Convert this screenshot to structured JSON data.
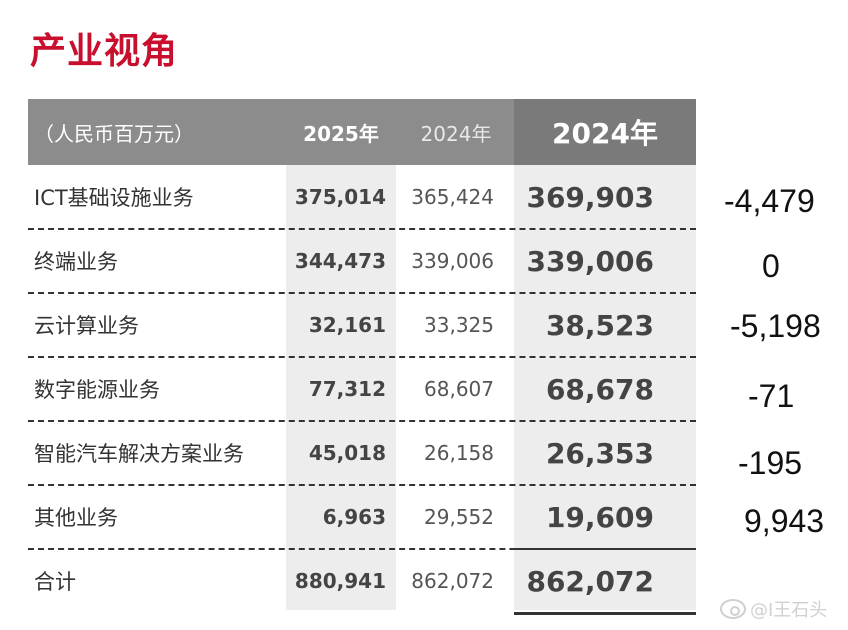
{
  "title": "产业视角",
  "table": {
    "header": {
      "label": "（人民币百万元）",
      "col_2025": "2025年",
      "col_2024": "2024年",
      "col_2024_big": "2024年"
    },
    "rows": [
      {
        "label": "ICT基础设施业务",
        "v2025": "375,014",
        "v2024": "365,424",
        "v2024b": "369,903",
        "diff": "-4,479"
      },
      {
        "label": "终端业务",
        "v2025": "344,473",
        "v2024": "339,006",
        "v2024b": "339,006",
        "diff": "0"
      },
      {
        "label": "云计算业务",
        "v2025": "32,161",
        "v2024": "33,325",
        "v2024b": "38,523",
        "diff": "-5,198"
      },
      {
        "label": "数字能源业务",
        "v2025": "77,312",
        "v2024": "68,607",
        "v2024b": "68,678",
        "diff": "-71"
      },
      {
        "label": "智能汽车解决方案业务",
        "v2025": "45,018",
        "v2024": "26,158",
        "v2024b": "26,353",
        "diff": "-195"
      },
      {
        "label": "其他业务",
        "v2025": "6,963",
        "v2024": "29,552",
        "v2024b": "19,609",
        "diff": "9,943"
      },
      {
        "label": "合计",
        "v2025": "880,941",
        "v2024": "862,072",
        "v2024b": "862,072",
        "diff": ""
      }
    ]
  },
  "watermark": {
    "text": "@I王石头",
    "icon": "weibo-icon"
  },
  "colors": {
    "title": "#c8102e",
    "header_bg": "#8c8c8c",
    "column_highlight": "#ededed"
  }
}
